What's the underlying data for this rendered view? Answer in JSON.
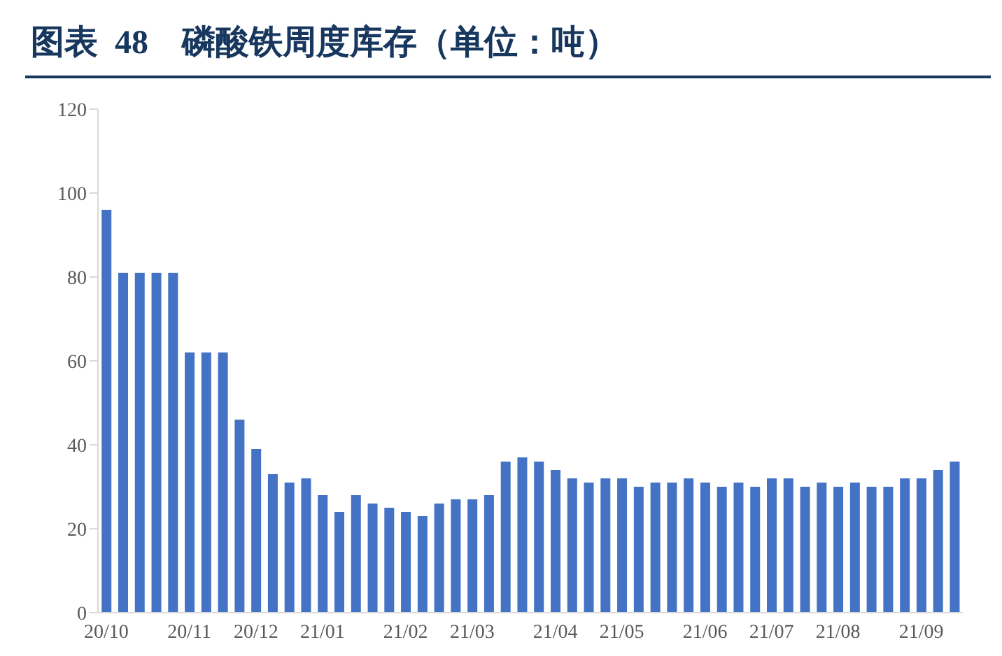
{
  "chart_data": {
    "type": "bar",
    "title": "图表  48    磷酸铁周度库存（单位：吨）",
    "categories": [
      "20/10",
      null,
      null,
      null,
      null,
      "20/11",
      null,
      null,
      null,
      "20/12",
      null,
      null,
      null,
      "21/01",
      null,
      null,
      null,
      null,
      "21/02",
      null,
      null,
      null,
      "21/03",
      null,
      null,
      null,
      null,
      "21/04",
      null,
      null,
      null,
      "21/05",
      null,
      null,
      null,
      null,
      "21/06",
      null,
      null,
      null,
      "21/07",
      null,
      null,
      null,
      "21/08",
      null,
      null,
      null,
      null,
      "21/09",
      null,
      null
    ],
    "values": [
      96,
      81,
      81,
      81,
      81,
      62,
      62,
      62,
      46,
      39,
      33,
      31,
      32,
      28,
      24,
      28,
      26,
      25,
      24,
      23,
      26,
      27,
      27,
      28,
      36,
      37,
      36,
      34,
      32,
      31,
      32,
      32,
      30,
      31,
      31,
      32,
      31,
      30,
      31,
      30,
      32,
      32,
      30,
      31,
      30,
      31,
      30,
      30,
      32,
      32,
      34,
      36
    ],
    "color": "#4472c4",
    "ylim": [
      0,
      120
    ],
    "yticks": [
      0,
      20,
      40,
      60,
      80,
      100,
      120
    ],
    "grid": false
  }
}
